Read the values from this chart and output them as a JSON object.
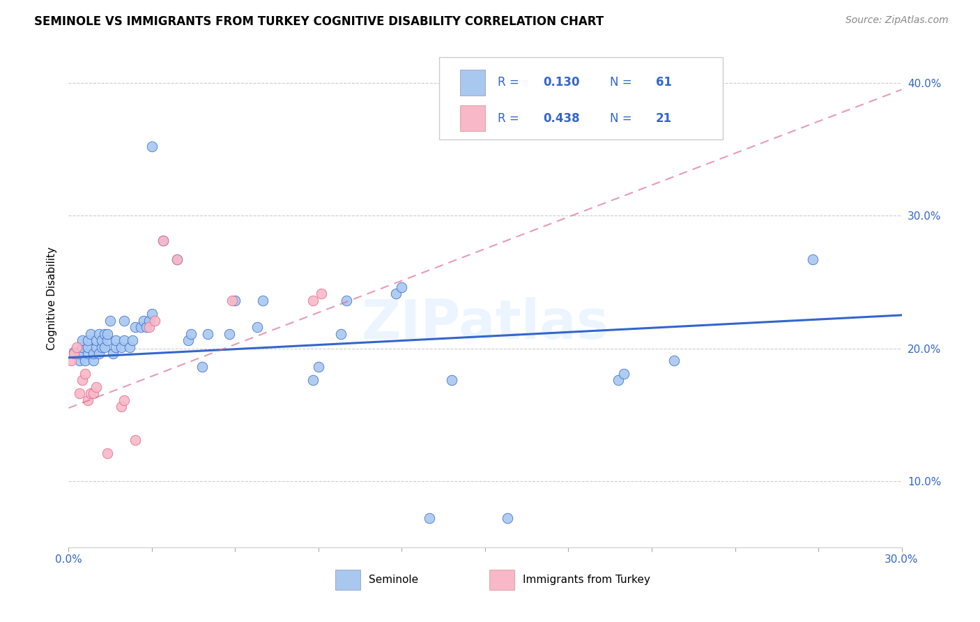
{
  "title": "SEMINOLE VS IMMIGRANTS FROM TURKEY COGNITIVE DISABILITY CORRELATION CHART",
  "source": "Source: ZipAtlas.com",
  "ylabel": "Cognitive Disability",
  "yticks": [
    0.1,
    0.2,
    0.3,
    0.4
  ],
  "ytick_labels": [
    "10.0%",
    "20.0%",
    "30.0%",
    "40.0%"
  ],
  "xmin": 0.0,
  "xmax": 0.3,
  "ymin": 0.05,
  "ymax": 0.425,
  "R_seminole": 0.13,
  "N_seminole": 61,
  "R_turkey": 0.438,
  "N_turkey": 21,
  "seminole_color": "#A8C8F0",
  "turkey_color": "#F8B8C8",
  "trendline_seminole_color": "#3366CC",
  "trendline_turkey_color": "#DD6688",
  "watermark": "ZIPatlas",
  "legend_color": "#3366CC",
  "seminole_scatter": [
    [
      0.002,
      0.197
    ],
    [
      0.004,
      0.191
    ],
    [
      0.004,
      0.196
    ],
    [
      0.005,
      0.201
    ],
    [
      0.005,
      0.206
    ],
    [
      0.006,
      0.191
    ],
    [
      0.007,
      0.196
    ],
    [
      0.007,
      0.201
    ],
    [
      0.007,
      0.206
    ],
    [
      0.008,
      0.211
    ],
    [
      0.009,
      0.191
    ],
    [
      0.009,
      0.196
    ],
    [
      0.01,
      0.201
    ],
    [
      0.01,
      0.206
    ],
    [
      0.011,
      0.211
    ],
    [
      0.011,
      0.196
    ],
    [
      0.012,
      0.201
    ],
    [
      0.012,
      0.206
    ],
    [
      0.013,
      0.211
    ],
    [
      0.013,
      0.201
    ],
    [
      0.014,
      0.206
    ],
    [
      0.014,
      0.211
    ],
    [
      0.015,
      0.221
    ],
    [
      0.016,
      0.196
    ],
    [
      0.017,
      0.201
    ],
    [
      0.017,
      0.206
    ],
    [
      0.019,
      0.201
    ],
    [
      0.02,
      0.206
    ],
    [
      0.02,
      0.221
    ],
    [
      0.022,
      0.201
    ],
    [
      0.023,
      0.206
    ],
    [
      0.024,
      0.216
    ],
    [
      0.026,
      0.216
    ],
    [
      0.027,
      0.221
    ],
    [
      0.028,
      0.216
    ],
    [
      0.029,
      0.221
    ],
    [
      0.03,
      0.226
    ],
    [
      0.043,
      0.206
    ],
    [
      0.044,
      0.211
    ],
    [
      0.048,
      0.186
    ],
    [
      0.05,
      0.211
    ],
    [
      0.058,
      0.211
    ],
    [
      0.06,
      0.236
    ],
    [
      0.068,
      0.216
    ],
    [
      0.07,
      0.236
    ],
    [
      0.088,
      0.176
    ],
    [
      0.09,
      0.186
    ],
    [
      0.098,
      0.211
    ],
    [
      0.1,
      0.236
    ],
    [
      0.118,
      0.241
    ],
    [
      0.12,
      0.246
    ],
    [
      0.13,
      0.072
    ],
    [
      0.138,
      0.176
    ],
    [
      0.158,
      0.072
    ],
    [
      0.198,
      0.176
    ],
    [
      0.2,
      0.181
    ],
    [
      0.218,
      0.191
    ],
    [
      0.03,
      0.352
    ],
    [
      0.034,
      0.281
    ],
    [
      0.039,
      0.267
    ],
    [
      0.268,
      0.267
    ]
  ],
  "turkey_scatter": [
    [
      0.001,
      0.191
    ],
    [
      0.002,
      0.196
    ],
    [
      0.003,
      0.201
    ],
    [
      0.004,
      0.166
    ],
    [
      0.005,
      0.176
    ],
    [
      0.006,
      0.181
    ],
    [
      0.007,
      0.161
    ],
    [
      0.008,
      0.166
    ],
    [
      0.009,
      0.166
    ],
    [
      0.01,
      0.171
    ],
    [
      0.014,
      0.121
    ],
    [
      0.019,
      0.156
    ],
    [
      0.02,
      0.161
    ],
    [
      0.024,
      0.131
    ],
    [
      0.029,
      0.216
    ],
    [
      0.031,
      0.221
    ],
    [
      0.034,
      0.281
    ],
    [
      0.039,
      0.267
    ],
    [
      0.059,
      0.236
    ],
    [
      0.088,
      0.236
    ],
    [
      0.091,
      0.241
    ]
  ],
  "seminole_trendline": [
    [
      0.0,
      0.193
    ],
    [
      0.3,
      0.225
    ]
  ],
  "turkey_trendline": [
    [
      0.0,
      0.155
    ],
    [
      0.3,
      0.395
    ]
  ]
}
